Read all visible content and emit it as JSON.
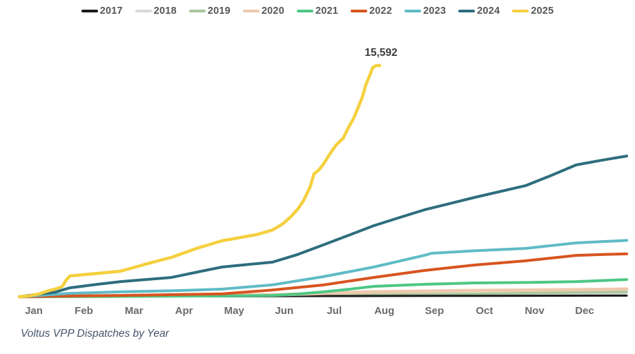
{
  "chart_data": {
    "type": "line",
    "title": "Voltus VPP Dispatches by Year",
    "xlabel": "",
    "ylabel": "",
    "categories": [
      "Jan",
      "Feb",
      "Mar",
      "Apr",
      "May",
      "Jun",
      "Jul",
      "Aug",
      "Sep",
      "Oct",
      "Nov",
      "Dec"
    ],
    "xlim_months": [
      0,
      12
    ],
    "ylim": [
      0,
      16700
    ],
    "grid": false,
    "legend_position": "top-center",
    "annotation": {
      "text": "15,592",
      "series": "2025",
      "meaning": "final cumulative value of 2025 line (early August)"
    },
    "series": [
      {
        "name": "2017",
        "color": "#1a1a1a",
        "points": [
          [
            0,
            0
          ],
          [
            3,
            25
          ],
          [
            6,
            45
          ],
          [
            9,
            60
          ],
          [
            12,
            75
          ]
        ]
      },
      {
        "name": "2018",
        "color": "#d8d8d8",
        "points": [
          [
            0,
            0
          ],
          [
            3,
            40
          ],
          [
            6,
            90
          ],
          [
            9,
            160
          ],
          [
            12,
            230
          ]
        ]
      },
      {
        "name": "2019",
        "color": "#a9c79c",
        "points": [
          [
            0,
            0
          ],
          [
            3,
            45
          ],
          [
            6,
            100
          ],
          [
            9,
            200
          ],
          [
            12,
            325
          ]
        ]
      },
      {
        "name": "2020",
        "color": "#edc9ad",
        "points": [
          [
            0,
            0
          ],
          [
            3,
            60
          ],
          [
            5,
            120
          ],
          [
            6,
            230
          ],
          [
            7,
            325
          ],
          [
            8,
            370
          ],
          [
            9,
            420
          ],
          [
            10,
            440
          ],
          [
            11,
            470
          ],
          [
            12,
            510
          ]
        ]
      },
      {
        "name": "2021",
        "color": "#4dc784",
        "points": [
          [
            0,
            0
          ],
          [
            2,
            25
          ],
          [
            4,
            50
          ],
          [
            5,
            90
          ],
          [
            5.5,
            180
          ],
          [
            6,
            325
          ],
          [
            6.5,
            500
          ],
          [
            7,
            700
          ],
          [
            8,
            840
          ],
          [
            9,
            930
          ],
          [
            10,
            960
          ],
          [
            11,
            1020
          ],
          [
            12,
            1160
          ]
        ]
      },
      {
        "name": "2022",
        "color": "#d8541f",
        "points": [
          [
            0,
            0
          ],
          [
            1,
            50
          ],
          [
            2,
            90
          ],
          [
            3,
            140
          ],
          [
            4,
            190
          ],
          [
            5,
            450
          ],
          [
            6,
            790
          ],
          [
            7,
            1300
          ],
          [
            8,
            1770
          ],
          [
            9,
            2140
          ],
          [
            10,
            2420
          ],
          [
            11,
            2790
          ],
          [
            11.6,
            2860
          ],
          [
            12,
            2890
          ]
        ]
      },
      {
        "name": "2023",
        "color": "#5fbbc6",
        "points": [
          [
            0,
            0
          ],
          [
            1,
            230
          ],
          [
            2,
            330
          ],
          [
            3,
            400
          ],
          [
            4,
            510
          ],
          [
            5,
            800
          ],
          [
            6,
            1350
          ],
          [
            7,
            2000
          ],
          [
            8,
            2790
          ],
          [
            8.15,
            2930
          ],
          [
            9,
            3100
          ],
          [
            10,
            3260
          ],
          [
            11,
            3630
          ],
          [
            12,
            3800
          ]
        ]
      },
      {
        "name": "2024",
        "color": "#2e6d7d",
        "points": [
          [
            0,
            0
          ],
          [
            0.4,
            180
          ],
          [
            0.7,
            300
          ],
          [
            1,
            600
          ],
          [
            1.5,
            820
          ],
          [
            2,
            1020
          ],
          [
            2.5,
            1160
          ],
          [
            3,
            1300
          ],
          [
            3.5,
            1650
          ],
          [
            4,
            2000
          ],
          [
            4.5,
            2170
          ],
          [
            5,
            2330
          ],
          [
            5.5,
            2850
          ],
          [
            6,
            3490
          ],
          [
            6.5,
            4140
          ],
          [
            7,
            4790
          ],
          [
            7.5,
            5330
          ],
          [
            8,
            5860
          ],
          [
            8.5,
            6280
          ],
          [
            9,
            6700
          ],
          [
            9.5,
            7100
          ],
          [
            10,
            7490
          ],
          [
            10.5,
            8170
          ],
          [
            11,
            8890
          ],
          [
            11.5,
            9200
          ],
          [
            12,
            9490
          ]
        ]
      },
      {
        "name": "2025",
        "color": "#f4d03e",
        "points": [
          [
            0,
            0
          ],
          [
            0.2,
            60
          ],
          [
            0.4,
            200
          ],
          [
            0.6,
            430
          ],
          [
            0.75,
            560
          ],
          [
            0.85,
            700
          ],
          [
            0.92,
            1100
          ],
          [
            1,
            1400
          ],
          [
            1.5,
            1560
          ],
          [
            2,
            1720
          ],
          [
            2.5,
            2200
          ],
          [
            3,
            2650
          ],
          [
            3.5,
            3260
          ],
          [
            4,
            3770
          ],
          [
            4.3,
            3950
          ],
          [
            4.7,
            4200
          ],
          [
            5,
            4500
          ],
          [
            5.2,
            4900
          ],
          [
            5.35,
            5350
          ],
          [
            5.5,
            5900
          ],
          [
            5.62,
            6500
          ],
          [
            5.75,
            7450
          ],
          [
            5.82,
            8280
          ],
          [
            5.92,
            8560
          ],
          [
            6,
            8900
          ],
          [
            6.15,
            9700
          ],
          [
            6.26,
            10240
          ],
          [
            6.4,
            10700
          ],
          [
            6.5,
            11400
          ],
          [
            6.6,
            12000
          ],
          [
            6.7,
            12800
          ],
          [
            6.78,
            13500
          ],
          [
            6.85,
            14330
          ],
          [
            6.92,
            14900
          ],
          [
            6.98,
            15450
          ],
          [
            7.05,
            15592
          ],
          [
            7.12,
            15592
          ]
        ]
      }
    ],
    "notes": "Cumulative dispatch count per year, Jan through Dec; 2025 line ends in early August at 15,592."
  }
}
